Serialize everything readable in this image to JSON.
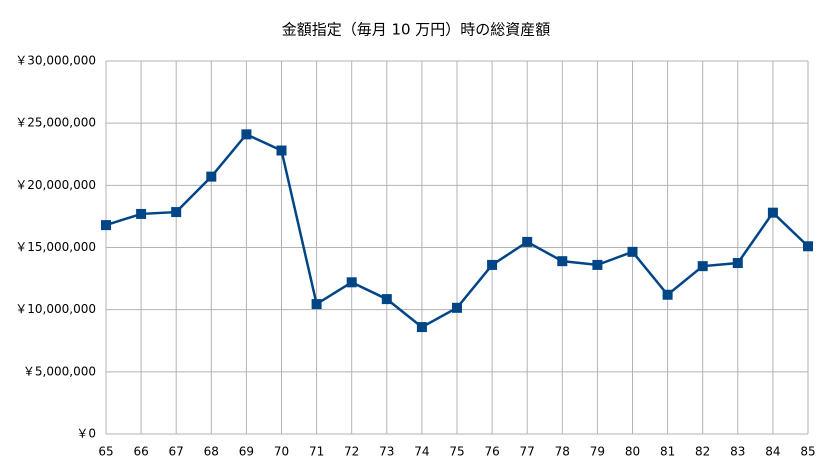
{
  "chart_data": {
    "type": "line",
    "title": "金額指定（毎月 10 万円）時の総資産額",
    "x": [
      65,
      66,
      67,
      68,
      69,
      70,
      71,
      72,
      73,
      74,
      75,
      76,
      77,
      78,
      79,
      80,
      81,
      82,
      83,
      84,
      85
    ],
    "series": [
      {
        "name": "総資産額",
        "color": "#004586",
        "values": [
          16800000,
          17700000,
          17850000,
          20700000,
          24100000,
          22800000,
          10450000,
          12200000,
          10850000,
          8600000,
          10150000,
          13600000,
          15450000,
          13900000,
          13600000,
          14650000,
          11200000,
          13500000,
          13750000,
          17800000,
          15100000
        ]
      }
    ],
    "xlim": [
      65,
      85
    ],
    "xticks": [
      65,
      66,
      67,
      68,
      69,
      70,
      71,
      72,
      73,
      74,
      75,
      76,
      77,
      78,
      79,
      80,
      81,
      82,
      83,
      84,
      85
    ],
    "ylim": [
      0,
      30000000
    ],
    "yticks": [
      {
        "value": 0,
        "label": "￥0"
      },
      {
        "value": 5000000,
        "label": "￥5,000,000"
      },
      {
        "value": 10000000,
        "label": "￥10,000,000"
      },
      {
        "value": 15000000,
        "label": "￥15,000,000"
      },
      {
        "value": 20000000,
        "label": "￥20,000,000"
      },
      {
        "value": 25000000,
        "label": "￥25,000,000"
      },
      {
        "value": 30000000,
        "label": "￥30,000,000"
      }
    ],
    "grid": true
  }
}
